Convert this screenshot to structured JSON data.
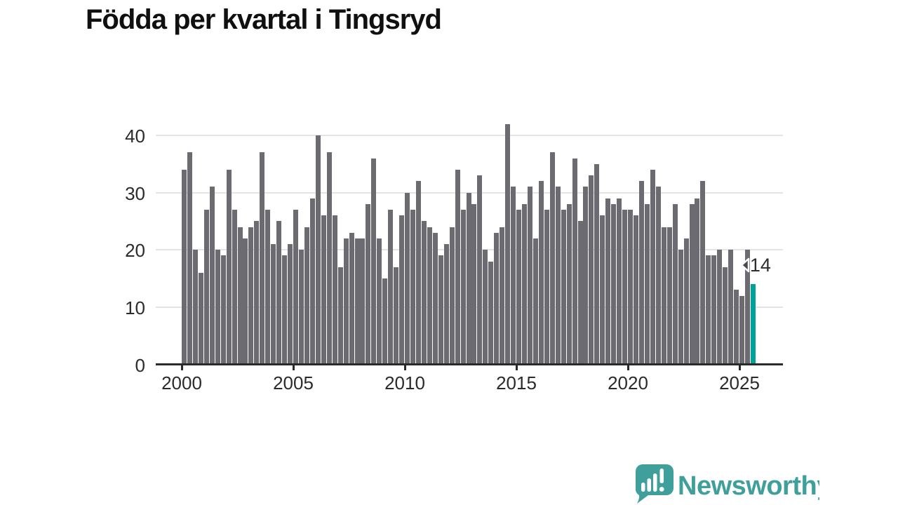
{
  "title": "Födda per kvartal i Tingsryd",
  "chart_data": {
    "type": "bar",
    "title": "Födda per kvartal i Tingsryd",
    "xlabel": "",
    "ylabel": "",
    "x_unit": "quarter",
    "first_quarter": "2000 Q1",
    "last_quarter": "2025 Q3",
    "ylim": [
      0,
      43
    ],
    "yticks": [
      0,
      10,
      20,
      30,
      40
    ],
    "xticks": [
      2000,
      2005,
      2010,
      2015,
      2020,
      2025
    ],
    "grid": "horizontal",
    "legend": "none",
    "quarters": [
      {
        "year": 2000,
        "values": [
          34,
          37,
          20,
          16
        ]
      },
      {
        "year": 2001,
        "values": [
          27,
          31,
          20,
          19
        ]
      },
      {
        "year": 2002,
        "values": [
          34,
          27,
          24,
          22
        ]
      },
      {
        "year": 2003,
        "values": [
          24,
          25,
          37,
          27
        ]
      },
      {
        "year": 2004,
        "values": [
          21,
          25,
          19,
          21
        ]
      },
      {
        "year": 2005,
        "values": [
          27,
          20,
          24,
          29
        ]
      },
      {
        "year": 2006,
        "values": [
          40,
          26,
          37,
          26
        ]
      },
      {
        "year": 2007,
        "values": [
          17,
          22,
          23,
          22
        ]
      },
      {
        "year": 2008,
        "values": [
          22,
          28,
          36,
          22
        ]
      },
      {
        "year": 2009,
        "values": [
          15,
          27,
          17,
          26
        ]
      },
      {
        "year": 2010,
        "values": [
          30,
          27,
          32,
          25
        ]
      },
      {
        "year": 2011,
        "values": [
          24,
          23,
          19,
          21
        ]
      },
      {
        "year": 2012,
        "values": [
          24,
          34,
          27,
          30
        ]
      },
      {
        "year": 2013,
        "values": [
          28,
          33,
          20,
          18
        ]
      },
      {
        "year": 2014,
        "values": [
          23,
          24,
          42,
          31
        ]
      },
      {
        "year": 2015,
        "values": [
          27,
          28,
          31,
          22
        ]
      },
      {
        "year": 2016,
        "values": [
          32,
          27,
          37,
          31
        ]
      },
      {
        "year": 2017,
        "values": [
          27,
          28,
          36,
          25
        ]
      },
      {
        "year": 2018,
        "values": [
          31,
          33,
          35,
          26
        ]
      },
      {
        "year": 2019,
        "values": [
          29,
          28,
          29,
          27
        ]
      },
      {
        "year": 2020,
        "values": [
          27,
          26,
          32,
          28
        ]
      },
      {
        "year": 2021,
        "values": [
          34,
          31,
          24,
          24
        ]
      },
      {
        "year": 2022,
        "values": [
          28,
          20,
          22,
          28
        ]
      },
      {
        "year": 2023,
        "values": [
          29,
          32,
          19,
          19
        ]
      },
      {
        "year": 2024,
        "values": [
          20,
          17,
          20,
          13
        ]
      },
      {
        "year": 2025,
        "values": [
          12,
          20,
          14
        ]
      }
    ],
    "highlight": {
      "position": "last",
      "value": 14,
      "label": "14"
    }
  },
  "colors": {
    "bar": "#6C6B71",
    "highlight": "#00A09B",
    "gridline": "#e5e4e4",
    "axis": "#2a2a2a",
    "text": "#2b2b2b",
    "brand": "#3FA09B"
  },
  "footer": {
    "brand": "Newsworthy",
    "logo_icon": "speech-bubble-chart-icon"
  }
}
